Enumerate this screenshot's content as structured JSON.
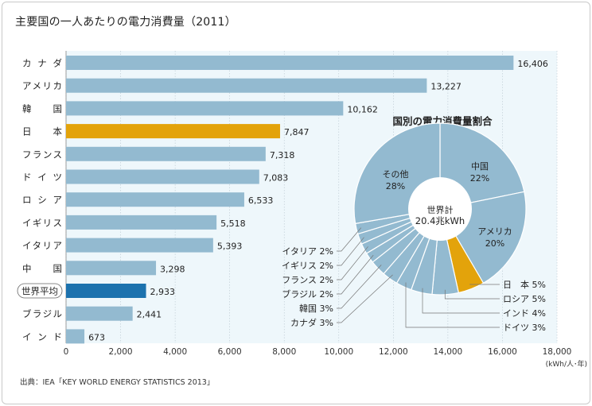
{
  "title": "主要国の一人あたりの電力消費量（2011）",
  "source": "出典：IEA「KEY WORLD ENERGY STATISTICS 2013」",
  "colors": {
    "bar": "#93bad0",
    "japan": "#e3a30b",
    "world": "#1c72ae",
    "panel": "#eef7fb",
    "pie": "#93bad0"
  },
  "chart_data": [
    {
      "type": "bar",
      "orientation": "horizontal",
      "categories": [
        "カナダ",
        "アメリカ",
        "韓　国",
        "日　本",
        "フランス",
        "ドイツ",
        "ロシア",
        "イギリス",
        "イタリア",
        "中　国",
        "世界平均",
        "ブラジル",
        "インド"
      ],
      "values": [
        16406,
        13227,
        10162,
        7847,
        7318,
        7083,
        6533,
        5518,
        5393,
        3298,
        2933,
        2441,
        673
      ],
      "value_labels": [
        "16,406",
        "13,227",
        "10,162",
        "7,847",
        "7,318",
        "7,083",
        "6,533",
        "5,518",
        "5,393",
        "3,298",
        "2,933",
        "2,441",
        "673"
      ],
      "highlight": {
        "日　本": "japan",
        "世界平均": "world"
      },
      "xlim": [
        0,
        18000
      ],
      "xticks": [
        "0",
        "2,000",
        "4,000",
        "6,000",
        "8,000",
        "10,000",
        "12,000",
        "14,000",
        "16,000",
        "18,000"
      ],
      "unit": "(kWh/人･年)"
    },
    {
      "type": "pie",
      "title": "国別の電力消費量割合",
      "center_label": [
        "世界計",
        "20.4兆kWh"
      ],
      "slices": [
        {
          "label": "中国",
          "value": 22,
          "value_label": "22%",
          "highlight": false
        },
        {
          "label": "アメリカ",
          "value": 20,
          "value_label": "20%",
          "highlight": false
        },
        {
          "label": "日　本",
          "value": 5,
          "value_label": "5%",
          "highlight": true
        },
        {
          "label": "ロシア",
          "value": 5,
          "value_label": "5%",
          "highlight": false
        },
        {
          "label": "インド",
          "value": 4,
          "value_label": "4%",
          "highlight": false
        },
        {
          "label": "ドイツ",
          "value": 3,
          "value_label": "3%",
          "highlight": false
        },
        {
          "label": "カナダ",
          "value": 3,
          "value_label": "3%",
          "highlight": false
        },
        {
          "label": "韓国",
          "value": 3,
          "value_label": "3%",
          "highlight": false
        },
        {
          "label": "ブラジル",
          "value": 2,
          "value_label": "2%",
          "highlight": false
        },
        {
          "label": "フランス",
          "value": 2,
          "value_label": "2%",
          "highlight": false
        },
        {
          "label": "イギリス",
          "value": 2,
          "value_label": "2%",
          "highlight": false
        },
        {
          "label": "イタリア",
          "value": 2,
          "value_label": "2%",
          "highlight": false
        },
        {
          "label": "その他",
          "value": 28,
          "value_label": "28%",
          "highlight": false
        }
      ]
    }
  ]
}
